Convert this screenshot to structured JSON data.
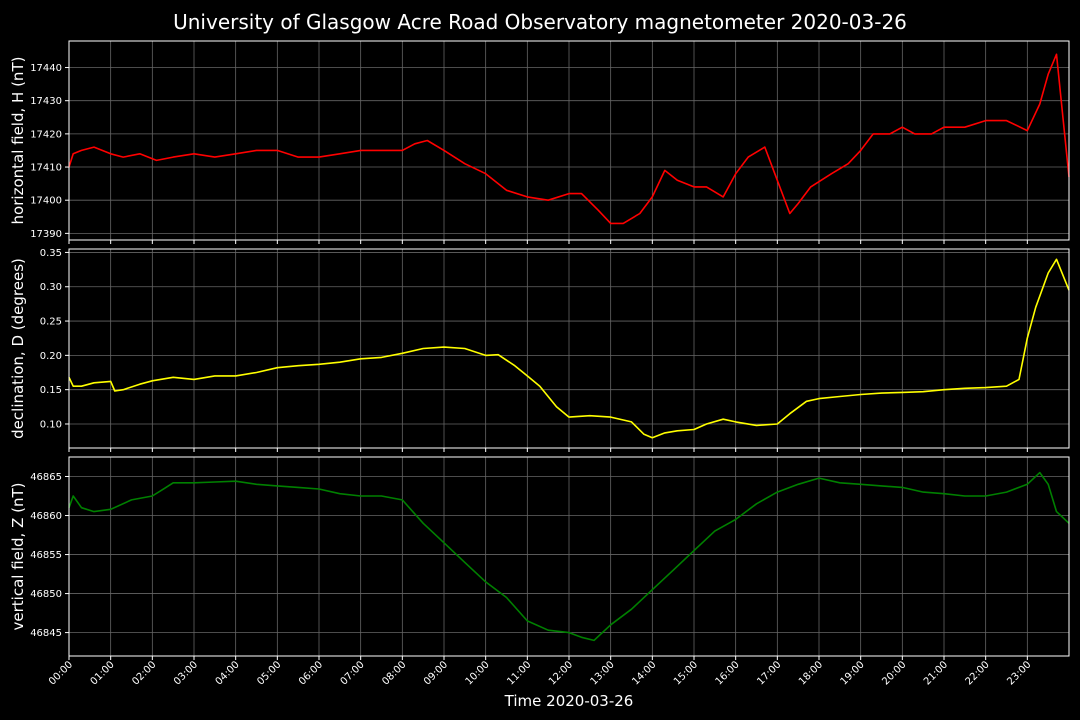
{
  "title": "University of Glasgow Acre Road Observatory magnetometer 2020-03-26",
  "chart_data": [
    {
      "type": "line",
      "ylabel": "horizontal field, H (nT)",
      "ylim": [
        17388,
        17448
      ],
      "yticks": [
        17390,
        17400,
        17410,
        17420,
        17430,
        17440
      ],
      "color": "#ff0000",
      "grid": true,
      "series": [
        {
          "x": [
            0.0,
            0.1,
            0.3,
            0.6,
            1.0,
            1.3,
            1.7,
            2.1,
            2.5,
            3.0,
            3.5,
            4.0,
            4.5,
            5.0,
            5.5,
            6.0,
            6.5,
            7.0,
            7.5,
            8.0,
            8.3,
            8.6,
            9.0,
            9.5,
            10.0,
            10.5,
            11.0,
            11.5,
            12.0,
            12.3,
            12.7,
            13.0,
            13.3,
            13.7,
            14.0,
            14.3,
            14.6,
            15.0,
            15.3,
            15.7,
            16.0,
            16.3,
            16.7,
            17.0,
            17.3,
            17.5,
            17.8,
            18.3,
            18.7,
            19.0,
            19.3,
            19.7,
            20.0,
            20.3,
            20.7,
            21.0,
            21.5,
            22.0,
            22.5,
            23.0,
            23.3,
            23.5,
            23.7,
            24.0
          ],
          "y": [
            17410,
            17414,
            17415,
            17416,
            17414,
            17413,
            17414,
            17412,
            17413,
            17414,
            17413,
            17414,
            17415,
            17415,
            17413,
            17413,
            17414,
            17415,
            17415,
            17415,
            17417,
            17418,
            17415,
            17411,
            17408,
            17403,
            17401,
            17400,
            17402,
            17402,
            17397,
            17393,
            17393,
            17396,
            17401,
            17409,
            17406,
            17404,
            17404,
            17401,
            17408,
            17413,
            17416,
            17406,
            17396,
            17399,
            17404,
            17408,
            17411,
            17415,
            17420,
            17420,
            17422,
            17420,
            17420,
            17422,
            17422,
            17424,
            17424,
            17421,
            17429,
            17438,
            17444,
            17407
          ]
        }
      ]
    },
    {
      "type": "line",
      "ylabel": "declination, D (degrees)",
      "ylim": [
        0.065,
        0.355
      ],
      "yticks": [
        0.1,
        0.15,
        0.2,
        0.25,
        0.3,
        0.35
      ],
      "color": "#ffff00",
      "grid": true,
      "series": [
        {
          "x": [
            0.0,
            0.1,
            0.3,
            0.6,
            1.0,
            1.1,
            1.3,
            1.7,
            2.0,
            2.5,
            3.0,
            3.5,
            4.0,
            4.5,
            5.0,
            5.5,
            6.0,
            6.5,
            7.0,
            7.5,
            8.0,
            8.5,
            9.0,
            9.5,
            10.0,
            10.3,
            10.7,
            11.0,
            11.3,
            11.7,
            12.0,
            12.5,
            13.0,
            13.5,
            13.8,
            14.0,
            14.3,
            14.6,
            15.0,
            15.3,
            15.7,
            16.0,
            16.5,
            17.0,
            17.3,
            17.7,
            18.0,
            18.5,
            19.0,
            19.5,
            20.0,
            20.5,
            21.0,
            21.5,
            22.0,
            22.5,
            22.8,
            23.0,
            23.2,
            23.5,
            23.7,
            24.0
          ],
          "y": [
            0.168,
            0.155,
            0.155,
            0.16,
            0.162,
            0.148,
            0.15,
            0.158,
            0.163,
            0.168,
            0.165,
            0.17,
            0.17,
            0.175,
            0.182,
            0.185,
            0.187,
            0.19,
            0.195,
            0.197,
            0.203,
            0.21,
            0.212,
            0.21,
            0.2,
            0.201,
            0.185,
            0.17,
            0.155,
            0.125,
            0.11,
            0.112,
            0.11,
            0.103,
            0.085,
            0.08,
            0.087,
            0.09,
            0.092,
            0.1,
            0.107,
            0.103,
            0.098,
            0.1,
            0.115,
            0.133,
            0.137,
            0.14,
            0.143,
            0.145,
            0.146,
            0.147,
            0.15,
            0.152,
            0.153,
            0.155,
            0.165,
            0.225,
            0.27,
            0.32,
            0.34,
            0.295
          ]
        }
      ]
    },
    {
      "type": "line",
      "ylabel": "vertical field, Z (nT)",
      "ylim": [
        46842,
        46867.5
      ],
      "yticks": [
        46845,
        46850,
        46855,
        46860,
        46865
      ],
      "color": "#008000",
      "grid": true,
      "series": [
        {
          "x": [
            0.0,
            0.1,
            0.3,
            0.6,
            1.0,
            1.5,
            2.0,
            2.3,
            2.5,
            3.0,
            3.5,
            4.0,
            4.5,
            5.0,
            5.5,
            6.0,
            6.5,
            7.0,
            7.5,
            8.0,
            8.5,
            9.0,
            9.5,
            10.0,
            10.5,
            11.0,
            11.5,
            12.0,
            12.3,
            12.6,
            13.0,
            13.5,
            14.0,
            14.5,
            15.0,
            15.5,
            16.0,
            16.5,
            17.0,
            17.5,
            18.0,
            18.5,
            19.0,
            19.5,
            20.0,
            20.5,
            21.0,
            21.5,
            22.0,
            22.5,
            23.0,
            23.3,
            23.5,
            23.7,
            24.0
          ],
          "y": [
            46861,
            46862.5,
            46861,
            46860.5,
            46860.8,
            46862,
            46862.5,
            46863.5,
            46864.2,
            46864.2,
            46864.3,
            46864.4,
            46864,
            46863.8,
            46863.6,
            46863.4,
            46862.8,
            46862.5,
            46862.5,
            46862,
            46859,
            46856.5,
            46854,
            46851.5,
            46849.5,
            46846.5,
            46845.3,
            46845,
            46844.4,
            46844,
            46846,
            46848,
            46850.5,
            46853,
            46855.5,
            46858,
            46859.5,
            46861.5,
            46863,
            46864,
            46864.8,
            46864.2,
            46864,
            46863.8,
            46863.6,
            46863,
            46862.8,
            46862.5,
            46862.5,
            46863,
            46864,
            46865.5,
            46864,
            46860.5,
            46859
          ]
        }
      ]
    }
  ],
  "x_axis": {
    "label": "Time 2020-03-26",
    "range_hours": [
      0,
      24
    ],
    "tick_labels": [
      "00:00",
      "01:00",
      "02:00",
      "03:00",
      "04:00",
      "05:00",
      "06:00",
      "07:00",
      "08:00",
      "09:00",
      "10:00",
      "11:00",
      "12:00",
      "13:00",
      "14:00",
      "15:00",
      "16:00",
      "17:00",
      "18:00",
      "19:00",
      "20:00",
      "21:00",
      "22:00",
      "23:00"
    ]
  },
  "colors": {
    "background": "#000000",
    "axes": "#ffffff",
    "grid": "#666666"
  }
}
